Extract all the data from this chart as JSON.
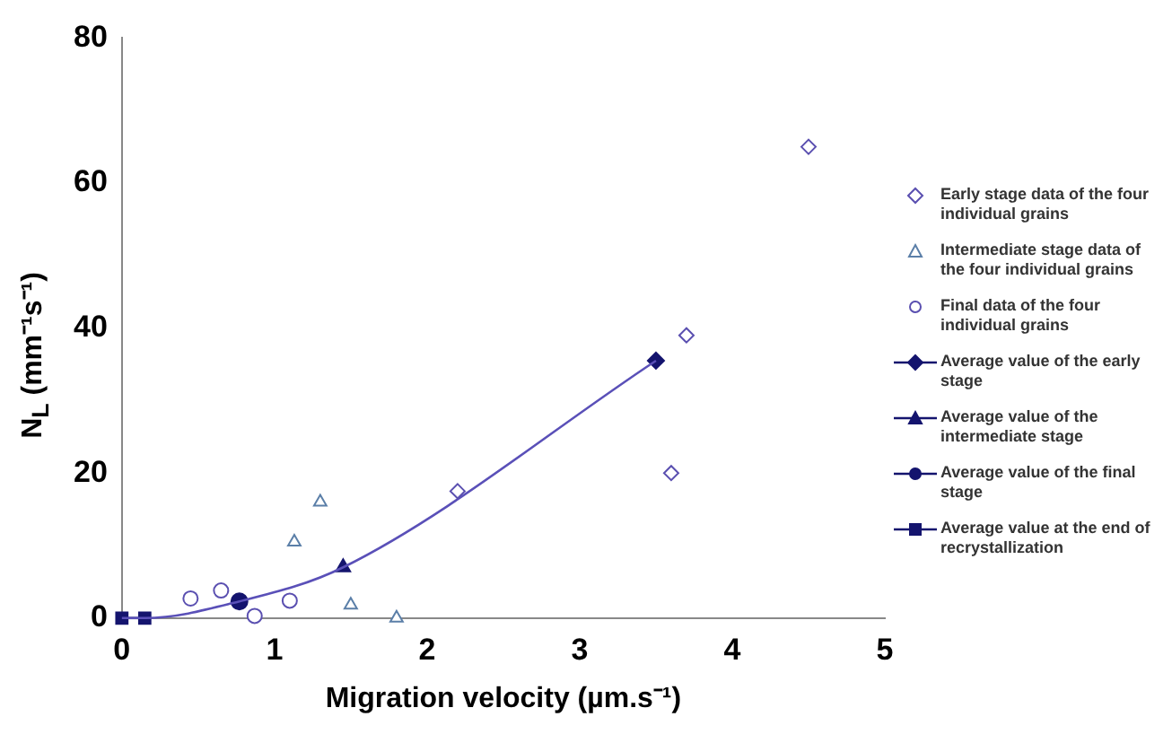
{
  "chart_data": {
    "type": "scatter",
    "xlabel": "Migration velocity (µm.s⁻¹)",
    "ylabel": "N$_{L}$ (mm⁻¹s⁻¹)",
    "xlim": [
      0,
      5
    ],
    "xticks": [
      0,
      1,
      2,
      3,
      4,
      5
    ],
    "ylim": [
      0,
      80
    ],
    "yticks": [
      0,
      20,
      40,
      60,
      80
    ],
    "grid": false,
    "legend": "right",
    "series": [
      {
        "name": "Early stage data of the four individual grains",
        "type": "scatter",
        "marker": "diamond",
        "color": "#5a4fb0",
        "x": [
          2.2,
          3.6,
          3.7,
          4.5
        ],
        "values": [
          17.5,
          20,
          39,
          65
        ]
      },
      {
        "name": "Intermediate stage data of the four individual grains",
        "type": "scatter",
        "marker": "triangle",
        "color": "#5b7fa8",
        "x": [
          1.13,
          1.3,
          1.5,
          1.8
        ],
        "values": [
          10.5,
          16,
          1.8,
          0
        ]
      },
      {
        "name": "Final data of the four individual grains",
        "type": "scatter",
        "marker": "circle",
        "color": "#5a4fb0",
        "x": [
          0.45,
          0.65,
          0.87,
          1.1
        ],
        "values": [
          2.7,
          3.8,
          0.3,
          2.4
        ]
      },
      {
        "type": "line",
        "marker": "none",
        "color": "#5a50b8",
        "x": [
          0,
          0.15,
          0.77,
          1.45,
          3.5
        ],
        "values": [
          0,
          0,
          2.3,
          7,
          35.5
        ]
      },
      {
        "name": "Average value of the early stage",
        "type": "line",
        "marker": "diamond",
        "color": "#14146e",
        "x": [
          3.5
        ],
        "values": [
          35.5
        ]
      },
      {
        "name": "Average value of the intermediate stage",
        "type": "line",
        "marker": "triangle",
        "color": "#14146e",
        "x": [
          1.45
        ],
        "values": [
          7
        ]
      },
      {
        "name": "Average value of the final stage",
        "type": "line",
        "marker": "circle",
        "color": "#14146e",
        "x": [
          0.77
        ],
        "values": [
          2.3
        ]
      },
      {
        "name": "Average value at the end of recrystallization",
        "type": "line",
        "marker": "square",
        "color": "#14146e",
        "x": [
          0,
          0.15
        ],
        "values": [
          0,
          0
        ]
      }
    ]
  }
}
